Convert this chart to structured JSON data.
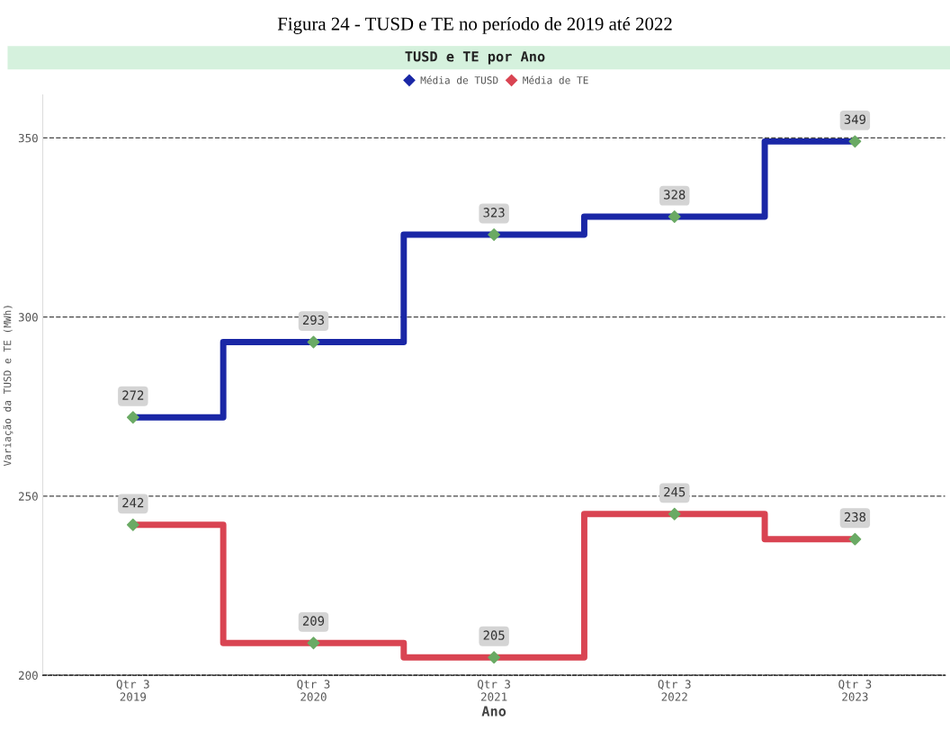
{
  "chart_data": {
    "type": "step",
    "title": "Figura 24 - TUSD e TE no período de 2019 até 2022",
    "subtitle": "TUSD e TE por Ano",
    "xlabel": "Ano",
    "ylabel": "Variação da TUSD e TE (MWh)",
    "categories": [
      "Qtr 3\n2019",
      "Qtr 3\n2020",
      "Qtr 3\n2021",
      "Qtr 3\n2022",
      "Qtr 3\n2023"
    ],
    "series": [
      {
        "name": "Média de TUSD",
        "color": "#1a27a6",
        "colors": [
          "#6aaa64",
          "#6aaa64",
          "#6aaa64",
          "#6aaa64",
          "#6aaa64"
        ],
        "values": [
          272,
          293,
          323,
          328,
          349
        ]
      },
      {
        "name": "Média de TE",
        "color": "#d94452",
        "colors": [
          "#6aaa64",
          "#6aaa64",
          "#6aaa64",
          "#6aaa64",
          "#6aaa64"
        ],
        "values": [
          242,
          209,
          205,
          245,
          238
        ]
      }
    ],
    "ylim": [
      200,
      362
    ],
    "yticks": [
      200,
      250,
      300,
      350
    ],
    "grid": "y",
    "legend": "top",
    "marker": "diamond",
    "line_style": "solid",
    "data_labels": true
  }
}
